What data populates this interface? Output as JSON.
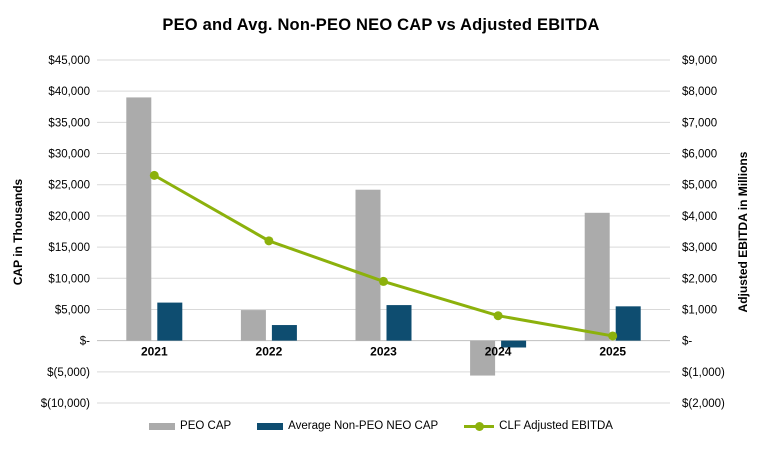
{
  "title": "PEO and Avg. Non-PEO NEO CAP vs Adjusted EBITDA",
  "chart_data": {
    "type": "combo",
    "categories": [
      "2021",
      "2022",
      "2023",
      "2024",
      "2025"
    ],
    "series": [
      {
        "name": "PEO CAP",
        "type": "bar",
        "axis": "left",
        "color": "#ABABAB",
        "values": [
          39000,
          4900,
          24200,
          -5600,
          20500
        ]
      },
      {
        "name": "Average Non-PEO NEO CAP",
        "type": "bar",
        "axis": "left",
        "color": "#0E4D70",
        "values": [
          6100,
          2500,
          5700,
          -1100,
          5500
        ]
      },
      {
        "name": "CLF Adjusted EBITDA",
        "type": "line",
        "axis": "right",
        "color": "#8CB10C",
        "values": [
          5300,
          3200,
          1900,
          800,
          150
        ]
      }
    ],
    "left_axis": {
      "title": "CAP in Thousands",
      "min": -10000,
      "max": 45000,
      "step": 5000,
      "ticks": [
        "$45,000",
        "$40,000",
        "$35,000",
        "$30,000",
        "$25,000",
        "$20,000",
        "$15,000",
        "$10,000",
        "$5,000",
        "$-",
        "$(5,000)",
        "$(10,000)"
      ]
    },
    "right_axis": {
      "title": "Adjusted EBITDA in Millions",
      "min": -2000,
      "max": 9000,
      "step": 1000,
      "ticks": [
        "$9,000",
        "$8,000",
        "$7,000",
        "$6,000",
        "$5,000",
        "$4,000",
        "$3,000",
        "$2,000",
        "$1,000",
        "$-",
        "$(1,000)",
        "$(2,000)"
      ]
    },
    "grid": true,
    "gridline_color": "#D9D9D9",
    "zero_line_color": "#BFBFBF",
    "legend_position": "bottom"
  }
}
